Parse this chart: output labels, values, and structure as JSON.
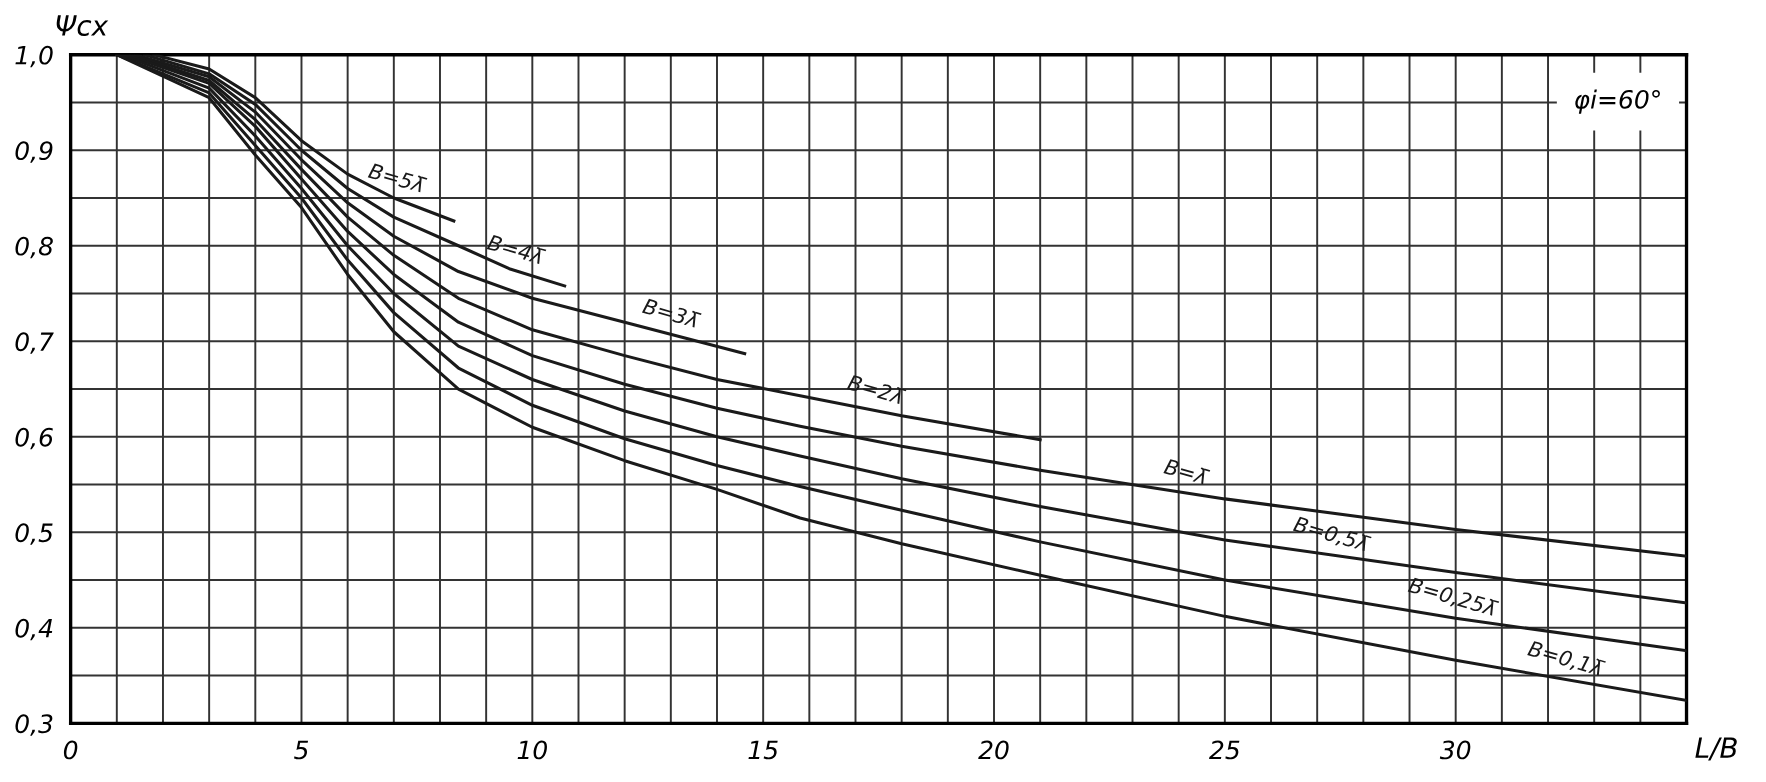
{
  "chart_data": {
    "type": "line",
    "xlabel": "L/B",
    "ylabel": "Ψcx",
    "xlim": [
      0,
      35
    ],
    "ylim": [
      0.3,
      1.0
    ],
    "xticks": [
      0,
      {
        "value": 1,
        "label": null
      },
      {
        "value": 2,
        "label": null
      },
      {
        "value": 3,
        "label": null
      },
      {
        "value": 4,
        "label": null
      },
      5,
      {
        "value": 6,
        "label": null
      },
      {
        "value": 7,
        "label": null
      },
      {
        "value": 8,
        "label": null
      },
      {
        "value": 9,
        "label": null
      },
      10,
      {
        "value": 11,
        "label": null
      },
      {
        "value": 12,
        "label": null
      },
      {
        "value": 13,
        "label": null
      },
      {
        "value": 14,
        "label": null
      },
      15,
      {
        "value": 16,
        "label": null
      },
      {
        "value": 17,
        "label": null
      },
      {
        "value": 18,
        "label": null
      },
      {
        "value": 19,
        "label": null
      },
      20,
      {
        "value": 21,
        "label": null
      },
      {
        "value": 22,
        "label": null
      },
      {
        "value": 23,
        "label": null
      },
      {
        "value": 24,
        "label": null
      },
      25,
      {
        "value": 26,
        "label": null
      },
      {
        "value": 27,
        "label": null
      },
      {
        "value": 28,
        "label": null
      },
      {
        "value": 29,
        "label": null
      },
      30,
      {
        "value": 31,
        "label": null
      },
      {
        "value": 32,
        "label": null
      },
      {
        "value": 33,
        "label": null
      },
      {
        "value": 34,
        "label": null
      },
      {
        "value": 35,
        "label": null
      }
    ],
    "yticks": [
      {
        "value": 0.3,
        "label": "0,3"
      },
      {
        "value": 0.35,
        "label": null
      },
      {
        "value": 0.4,
        "label": "0,4"
      },
      {
        "value": 0.45,
        "label": null
      },
      {
        "value": 0.5,
        "label": "0,5"
      },
      {
        "value": 0.55,
        "label": null
      },
      {
        "value": 0.6,
        "label": "0,6"
      },
      {
        "value": 0.65,
        "label": null
      },
      {
        "value": 0.7,
        "label": "0,7"
      },
      {
        "value": 0.75,
        "label": null
      },
      {
        "value": 0.8,
        "label": "0,8"
      },
      {
        "value": 0.85,
        "label": null
      },
      {
        "value": 0.9,
        "label": "0,9"
      },
      {
        "value": 0.95,
        "label": null
      },
      {
        "value": 1.0,
        "label": "1,0"
      }
    ],
    "grid": true,
    "marker": "none",
    "line_style": "solid",
    "series": [
      {
        "name": "B=5λ̄",
        "color": "#1a1a1a",
        "x": [
          1.8,
          3,
          4,
          5,
          6,
          7,
          8.3
        ],
        "values": [
          1.0,
          0.985,
          0.955,
          0.91,
          0.875,
          0.85,
          0.826
        ]
      },
      {
        "name": "B=4λ̄",
        "color": "#1a1a1a",
        "x": [
          1.6,
          3,
          4,
          5,
          6,
          7,
          8.4,
          9.5,
          10.7
        ],
        "values": [
          1.0,
          0.98,
          0.948,
          0.9,
          0.86,
          0.83,
          0.8,
          0.776,
          0.758
        ]
      },
      {
        "name": "B=3λ̄",
        "color": "#1a1a1a",
        "x": [
          1.4,
          3,
          4,
          5,
          6,
          7,
          8.4,
          10,
          12,
          14.6
        ],
        "values": [
          1.0,
          0.977,
          0.94,
          0.89,
          0.845,
          0.81,
          0.773,
          0.745,
          0.72,
          0.687
        ]
      },
      {
        "name": "B=2λ̄",
        "color": "#1a1a1a",
        "x": [
          1.3,
          3,
          4,
          5,
          6,
          7,
          8.4,
          10,
          12,
          14,
          15.8,
          18,
          21
        ],
        "values": [
          1.0,
          0.973,
          0.932,
          0.88,
          0.83,
          0.79,
          0.745,
          0.712,
          0.685,
          0.66,
          0.643,
          0.622,
          0.597
        ]
      },
      {
        "name": "B=λ̄",
        "color": "#1a1a1a",
        "x": [
          1.2,
          3,
          4,
          5,
          6,
          7,
          8.4,
          10,
          12,
          14,
          15.8,
          18,
          21,
          25,
          30,
          35
        ],
        "values": [
          1.0,
          0.97,
          0.925,
          0.87,
          0.815,
          0.77,
          0.72,
          0.685,
          0.655,
          0.63,
          0.611,
          0.59,
          0.565,
          0.535,
          0.503,
          0.475
        ]
      },
      {
        "name": "B=0,5λ̄",
        "color": "#1a1a1a",
        "x": [
          1.1,
          3,
          4,
          5,
          6,
          7,
          8.4,
          10,
          12,
          14,
          15.8,
          18,
          21,
          25,
          30,
          35
        ],
        "values": [
          1.0,
          0.965,
          0.915,
          0.86,
          0.8,
          0.75,
          0.695,
          0.66,
          0.627,
          0.6,
          0.58,
          0.556,
          0.527,
          0.492,
          0.458,
          0.426
        ]
      },
      {
        "name": "B=0,25λ̄",
        "color": "#1a1a1a",
        "x": [
          1.0,
          3,
          4,
          5,
          6,
          7,
          8.4,
          10,
          12,
          14,
          15.8,
          18,
          21,
          25,
          30,
          35
        ],
        "values": [
          1.0,
          0.96,
          0.905,
          0.85,
          0.785,
          0.73,
          0.672,
          0.633,
          0.598,
          0.57,
          0.548,
          0.523,
          0.49,
          0.45,
          0.41,
          0.376
        ]
      },
      {
        "name": "B=0,1λ̄",
        "color": "#1a1a1a",
        "x": [
          1.0,
          3,
          4,
          5,
          6,
          7,
          8.4,
          10,
          12,
          14,
          15.8,
          18,
          21,
          25,
          30,
          35
        ],
        "values": [
          1.0,
          0.955,
          0.895,
          0.84,
          0.77,
          0.71,
          0.65,
          0.61,
          0.575,
          0.545,
          0.515,
          0.488,
          0.455,
          0.412,
          0.366,
          0.324
        ]
      }
    ],
    "annotations": [
      "φi=60°"
    ]
  }
}
